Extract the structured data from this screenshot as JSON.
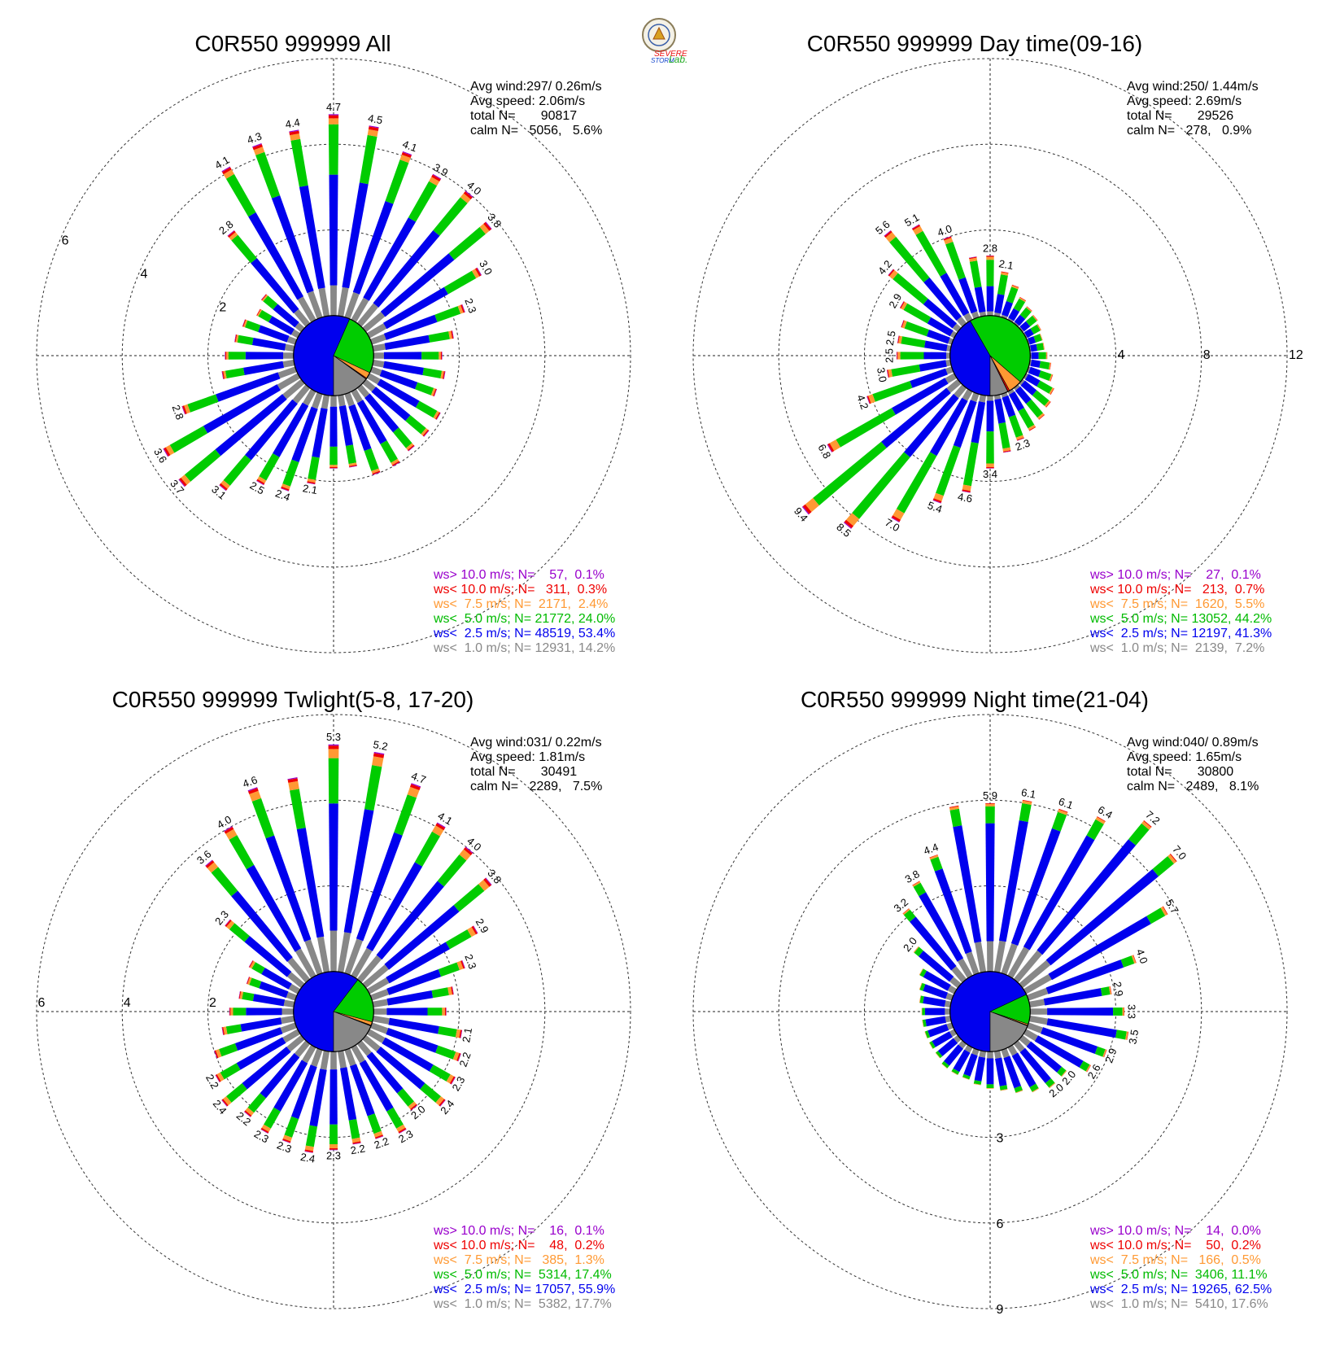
{
  "logo": {
    "icon": "severe-storm-lab-seal-icon",
    "text_1": "SEVERE",
    "text_2": "STORM",
    "text_3": "Lab."
  },
  "sector_colors": [
    "#888888",
    "#0000ee",
    "#00cc00",
    "#ff9933",
    "#ee0000",
    "#9900cc"
  ],
  "chart_data": [
    {
      "type": "wind-rose",
      "title": "C0R550 999999 All",
      "stats": [
        "Avg wind:297/ 0.26m/s",
        "Avg speed: 2.06m/s",
        "total N=       90817",
        "calm N=   5056,   5.6%"
      ],
      "rings": [
        2,
        4,
        6
      ],
      "ring_labels": [
        "2",
        "4",
        "6"
      ],
      "ring_label_position": "upper-left",
      "directions_deg": [
        0,
        10,
        20,
        30,
        40,
        50,
        60,
        70,
        80,
        90,
        100,
        110,
        120,
        130,
        140,
        150,
        160,
        170,
        180,
        190,
        200,
        210,
        220,
        230,
        240,
        250,
        260,
        270,
        280,
        290,
        300,
        310,
        320,
        330,
        340,
        350
      ],
      "percent": [
        4.7,
        4.5,
        4.1,
        3.9,
        4.0,
        3.8,
        3.0,
        2.3,
        1.9,
        1.6,
        1.7,
        1.6,
        1.9,
        1.9,
        1.9,
        2.0,
        2.0,
        1.7,
        1.7,
        2.1,
        2.4,
        2.5,
        3.1,
        3.7,
        3.6,
        2.8,
        1.7,
        1.6,
        1.4,
        1.3,
        1.1,
        1.2,
        2.8,
        4.1,
        4.3,
        4.4
      ],
      "bar_labels": [
        "4.7",
        "4.5",
        "4.1",
        "3.9",
        "4.0",
        "3.8",
        "3.0",
        "2.3",
        "",
        "",
        "",
        "",
        "",
        "",
        "",
        "",
        "",
        "",
        "",
        "2.1",
        "2.4",
        "2.5",
        "3.1",
        "3.7",
        "3.6",
        "2.8",
        "",
        "",
        "",
        "",
        "",
        "",
        "2.8",
        "4.1",
        "4.3",
        "4.4"
      ],
      "class_fractions": [
        0.15,
        0.55,
        0.25,
        0.03,
        0.015,
        0.005
      ],
      "legend": [
        {
          "label": "ws> 10.0 m/s; N=    57,  0.1%",
          "color": "#9900cc"
        },
        {
          "label": "ws< 10.0 m/s; N=   311,  0.3%",
          "color": "#ee0000"
        },
        {
          "label": "ws<  7.5 m/s; N=  2171,  2.4%",
          "color": "#ff9933"
        },
        {
          "label": "ws<  5.0 m/s; N= 21772, 24.0%",
          "color": "#00bb00"
        },
        {
          "label": "ws<  2.5 m/s; N= 48519, 53.4%",
          "color": "#0000ee"
        },
        {
          "label": "ws<  1.0 m/s; N= 12931, 14.2%",
          "color": "#888888"
        }
      ],
      "pie_percent": [
        14.2,
        53.4,
        24.0,
        2.4,
        0.3,
        0.1
      ]
    },
    {
      "type": "wind-rose",
      "title": "C0R550 999999 Day time(09-16)",
      "stats": [
        "Avg wind:250/ 1.44m/s",
        "Avg speed: 2.69m/s",
        "total N=       29526",
        "calm N=   278,   0.9%"
      ],
      "rings": [
        4,
        8,
        12
      ],
      "ring_labels": [
        "4",
        "8",
        "12"
      ],
      "ring_label_position": "east",
      "directions_deg": [
        0,
        10,
        20,
        30,
        40,
        50,
        60,
        70,
        80,
        90,
        100,
        110,
        120,
        130,
        140,
        150,
        160,
        170,
        180,
        190,
        200,
        210,
        220,
        230,
        240,
        250,
        260,
        270,
        280,
        290,
        300,
        310,
        320,
        330,
        340,
        350
      ],
      "percent": [
        2.8,
        2.1,
        1.6,
        1.2,
        1.0,
        0.9,
        0.8,
        0.7,
        0.7,
        0.8,
        1.0,
        1.2,
        1.5,
        1.7,
        1.9,
        2.1,
        2.3,
        2.7,
        3.4,
        4.6,
        5.4,
        7.0,
        8.5,
        9.4,
        6.8,
        4.2,
        3.0,
        2.5,
        2.5,
        2.5,
        2.9,
        4.2,
        5.6,
        5.1,
        4.0,
        2.8
      ],
      "bar_labels": [
        "2.8",
        "2.1",
        "",
        "",
        "",
        "",
        "",
        "",
        "",
        "",
        "",
        "",
        "",
        "",
        "",
        "",
        "2.3",
        "",
        "3.4",
        "4.6",
        "5.4",
        "7.0",
        "8.5",
        "9.4",
        "6.8",
        "4.2",
        "3.0",
        "2.5",
        "2.5",
        "",
        "2.9",
        "4.2",
        "5.6",
        "5.1",
        "4.0",
        ""
      ],
      "class_fractions": [
        0.07,
        0.42,
        0.44,
        0.05,
        0.015,
        0.005
      ],
      "legend": [
        {
          "label": "ws> 10.0 m/s; N=    27,  0.1%",
          "color": "#9900cc"
        },
        {
          "label": "ws< 10.0 m/s; N=   213,  0.7%",
          "color": "#ee0000"
        },
        {
          "label": "ws<  7.5 m/s; N=  1620,  5.5%",
          "color": "#ff9933"
        },
        {
          "label": "ws<  5.0 m/s; N= 13052, 44.2%",
          "color": "#00bb00"
        },
        {
          "label": "ws<  2.5 m/s; N= 12197, 41.3%",
          "color": "#0000ee"
        },
        {
          "label": "ws<  1.0 m/s; N=  2139,  7.2%",
          "color": "#888888"
        }
      ],
      "pie_percent": [
        7.2,
        41.3,
        44.2,
        5.5,
        0.7,
        0.1
      ]
    },
    {
      "type": "wind-rose",
      "title": "C0R550 999999 Twlight(5-8, 17-20)",
      "stats": [
        "Avg wind:031/ 0.22m/s",
        "Avg speed: 1.81m/s",
        "total N=       30491",
        "calm N=   2289,   7.5%"
      ],
      "rings": [
        2,
        4,
        6
      ],
      "ring_labels": [
        "2",
        "4",
        "6"
      ],
      "ring_label_position": "west",
      "directions_deg": [
        0,
        10,
        20,
        30,
        40,
        50,
        60,
        70,
        80,
        90,
        100,
        110,
        120,
        130,
        140,
        150,
        160,
        170,
        180,
        190,
        200,
        210,
        220,
        230,
        240,
        250,
        260,
        270,
        280,
        290,
        300,
        310,
        320,
        330,
        340,
        350
      ],
      "percent": [
        5.3,
        5.2,
        4.7,
        4.1,
        4.0,
        3.8,
        2.9,
        2.3,
        1.9,
        1.7,
        2.1,
        2.2,
        2.3,
        2.4,
        2.0,
        2.3,
        2.2,
        2.2,
        2.3,
        2.4,
        2.3,
        2.3,
        2.2,
        2.4,
        2.2,
        2.0,
        1.7,
        1.5,
        1.3,
        1.2,
        1.3,
        2.3,
        3.6,
        4.0,
        4.6,
        4.6
      ],
      "bar_labels": [
        "5.3",
        "5.2",
        "4.7",
        "4.1",
        "4.0",
        "3.8",
        "2.9",
        "2.3",
        "",
        "",
        "2.1",
        "2.2",
        "2.3",
        "2.4",
        "2.0",
        "2.3",
        "2.2",
        "2.2",
        "2.3",
        "2.4",
        "2.3",
        "2.3",
        "2.2",
        "2.4",
        "2.2",
        "",
        "",
        "",
        "",
        "",
        "",
        "2.3",
        "3.6",
        "4.0",
        "4.6",
        ""
      ],
      "class_fractions": [
        0.18,
        0.56,
        0.2,
        0.04,
        0.015,
        0.005
      ],
      "legend": [
        {
          "label": "ws> 10.0 m/s; N=    16,  0.1%",
          "color": "#9900cc"
        },
        {
          "label": "ws< 10.0 m/s; N=    48,  0.2%",
          "color": "#ee0000"
        },
        {
          "label": "ws<  7.5 m/s; N=   385,  1.3%",
          "color": "#ff9933"
        },
        {
          "label": "ws<  5.0 m/s; N=  5314, 17.4%",
          "color": "#00bb00"
        },
        {
          "label": "ws<  2.5 m/s; N= 17057, 55.9%",
          "color": "#0000ee"
        },
        {
          "label": "ws<  1.0 m/s; N=  5382, 17.7%",
          "color": "#888888"
        }
      ],
      "pie_percent": [
        17.7,
        55.9,
        17.4,
        1.3,
        0.2,
        0.1
      ]
    },
    {
      "type": "wind-rose",
      "title": "C0R550 999999 Night time(21-04)",
      "stats": [
        "Avg wind:040/ 0.89m/s",
        "Avg speed: 1.65m/s",
        "total N=       30800",
        "calm N=   2489,   8.1%"
      ],
      "rings": [
        3,
        6,
        9
      ],
      "ring_labels": [
        "3",
        "6",
        "9"
      ],
      "ring_label_position": "south",
      "directions_deg": [
        0,
        10,
        20,
        30,
        40,
        50,
        60,
        70,
        80,
        90,
        100,
        110,
        120,
        130,
        140,
        150,
        160,
        170,
        180,
        190,
        200,
        210,
        220,
        230,
        240,
        250,
        260,
        270,
        280,
        290,
        300,
        310,
        320,
        330,
        340,
        350
      ],
      "percent": [
        5.9,
        6.1,
        6.1,
        6.4,
        7.2,
        7.0,
        5.7,
        4.0,
        2.9,
        3.3,
        3.5,
        2.9,
        2.6,
        2.0,
        2.0,
        1.8,
        1.6,
        1.4,
        1.3,
        1.2,
        1.1,
        1.1,
        1.1,
        1.0,
        1.0,
        1.0,
        1.0,
        1.0,
        1.1,
        1.2,
        1.4,
        2.0,
        3.2,
        3.8,
        4.4,
        5.9
      ],
      "bar_labels": [
        "5.9",
        "6.1",
        "6.1",
        "6.4",
        "7.2",
        "7.0",
        "5.7",
        "4.0",
        "2.9",
        "3.3",
        "3.5",
        "2.9",
        "2.6",
        "2.0",
        "2.0",
        "",
        "",
        "",
        "",
        "",
        "",
        "",
        "",
        "",
        "",
        "",
        "",
        "",
        "",
        "",
        "",
        "2.0",
        "3.2",
        "3.8",
        "4.4",
        ""
      ],
      "class_fractions": [
        0.18,
        0.7,
        0.1,
        0.015,
        0.004,
        0.001
      ],
      "legend": [
        {
          "label": "ws> 10.0 m/s; N=    14,  0.0%",
          "color": "#9900cc"
        },
        {
          "label": "ws< 10.0 m/s; N=    50,  0.2%",
          "color": "#ee0000"
        },
        {
          "label": "ws<  7.5 m/s; N=   166,  0.5%",
          "color": "#ff9933"
        },
        {
          "label": "ws<  5.0 m/s; N=  3406, 11.1%",
          "color": "#00bb00"
        },
        {
          "label": "ws<  2.5 m/s; N= 19265, 62.5%",
          "color": "#0000ee"
        },
        {
          "label": "ws<  1.0 m/s; N=  5410, 17.6%",
          "color": "#888888"
        }
      ],
      "pie_percent": [
        17.6,
        62.5,
        11.1,
        0.5,
        0.2,
        0.0
      ]
    }
  ]
}
